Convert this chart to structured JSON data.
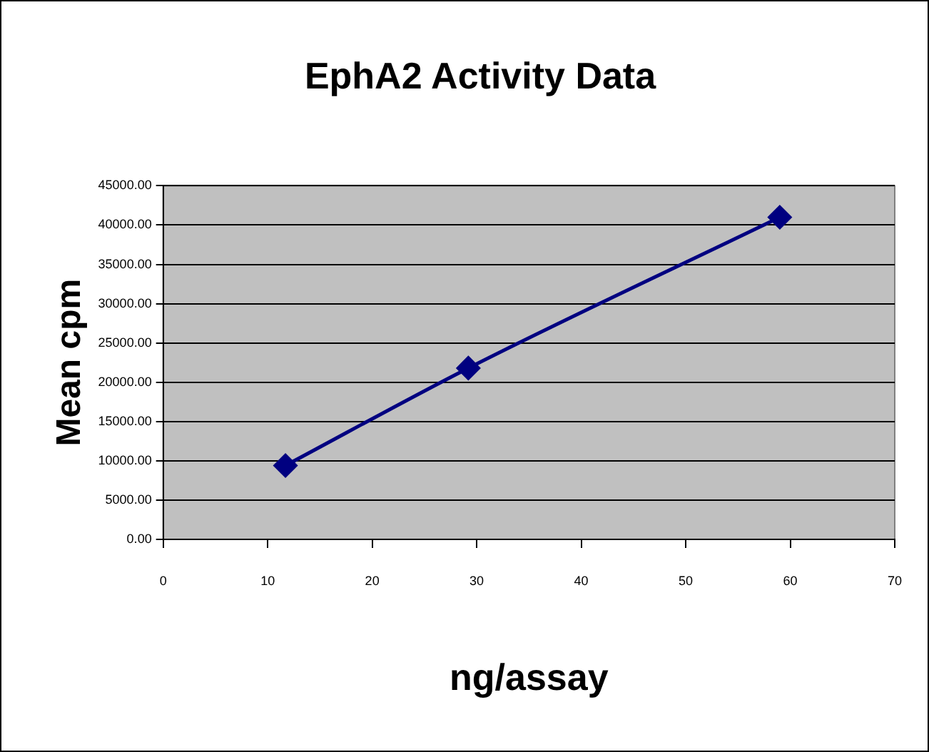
{
  "chart_data": {
    "type": "line",
    "title": "EphA2 Activity Data",
    "xlabel": "ng/assay",
    "ylabel": "Mean cpm",
    "x": [
      11.7,
      29.2,
      59.0
    ],
    "series": [
      {
        "color": "#000080",
        "values": [
          9400,
          21800,
          41000
        ]
      }
    ],
    "xlim": [
      0,
      70
    ],
    "xticks": [
      0,
      10,
      20,
      30,
      40,
      50,
      60,
      70
    ],
    "ylim": [
      0,
      45000
    ],
    "yticks": [
      {
        "value": 0,
        "label": "0.00"
      },
      {
        "value": 5000,
        "label": "5000.00"
      },
      {
        "value": 10000,
        "label": "10000.00"
      },
      {
        "value": 15000,
        "label": "15000.00"
      },
      {
        "value": 20000,
        "label": "20000.00"
      },
      {
        "value": 25000,
        "label": "25000.00"
      },
      {
        "value": 30000,
        "label": "30000.00"
      },
      {
        "value": 35000,
        "label": "35000.00"
      },
      {
        "value": 40000,
        "label": "40000.00"
      },
      {
        "value": 45000,
        "label": "45000.00"
      }
    ],
    "grid": "y",
    "legend": false,
    "marker": "diamond",
    "line_style": "solid"
  }
}
